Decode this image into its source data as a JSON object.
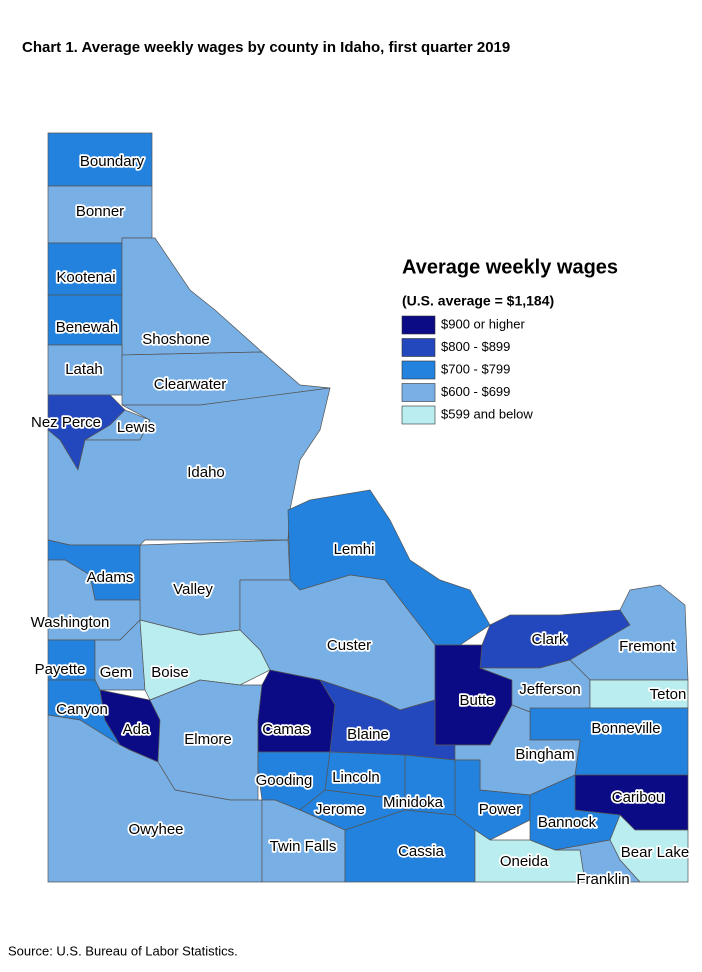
{
  "title": "Chart 1. Average weekly wages by county in Idaho, first quarter 2019",
  "legend": {
    "title": "Average weekly wages",
    "subtitle": "(U.S. average = $1,184)",
    "items": [
      {
        "label": "$900 or higher",
        "color": "#0b0b85"
      },
      {
        "label": "$800 - $899",
        "color": "#2347bd"
      },
      {
        "label": "$700 - $799",
        "color": "#2282de"
      },
      {
        "label": "$600 - $699",
        "color": "#78b0e6"
      },
      {
        "label": "$599 and below",
        "color": "#b9edf0"
      }
    ]
  },
  "counties": [
    {
      "name": "Boundary",
      "color": "#2282de"
    },
    {
      "name": "Bonner",
      "color": "#78b0e6"
    },
    {
      "name": "Kootenai",
      "color": "#2282de"
    },
    {
      "name": "Benewah",
      "color": "#2282de"
    },
    {
      "name": "Shoshone",
      "color": "#78b0e6"
    },
    {
      "name": "Latah",
      "color": "#78b0e6"
    },
    {
      "name": "Clearwater",
      "color": "#78b0e6"
    },
    {
      "name": "Nez Perce",
      "color": "#2347bd"
    },
    {
      "name": "Lewis",
      "color": "#78b0e6"
    },
    {
      "name": "Idaho",
      "color": "#78b0e6"
    },
    {
      "name": "Lemhi",
      "color": "#2282de"
    },
    {
      "name": "Adams",
      "color": "#2282de"
    },
    {
      "name": "Valley",
      "color": "#78b0e6"
    },
    {
      "name": "Washington",
      "color": "#78b0e6"
    },
    {
      "name": "Custer",
      "color": "#78b0e6"
    },
    {
      "name": "Clark",
      "color": "#2347bd"
    },
    {
      "name": "Fremont",
      "color": "#78b0e6"
    },
    {
      "name": "Payette",
      "color": "#2282de"
    },
    {
      "name": "Gem",
      "color": "#78b0e6"
    },
    {
      "name": "Boise",
      "color": "#b9edf0"
    },
    {
      "name": "Butte",
      "color": "#0b0b85"
    },
    {
      "name": "Jefferson",
      "color": "#78b0e6"
    },
    {
      "name": "Teton",
      "color": "#b9edf0"
    },
    {
      "name": "Canyon",
      "color": "#2282de"
    },
    {
      "name": "Ada",
      "color": "#0b0b85"
    },
    {
      "name": "Elmore",
      "color": "#78b0e6"
    },
    {
      "name": "Camas",
      "color": "#0b0b85"
    },
    {
      "name": "Blaine",
      "color": "#2347bd"
    },
    {
      "name": "Bonneville",
      "color": "#2282de"
    },
    {
      "name": "Bingham",
      "color": "#78b0e6"
    },
    {
      "name": "Gooding",
      "color": "#2282de"
    },
    {
      "name": "Lincoln",
      "color": "#2282de"
    },
    {
      "name": "Minidoka",
      "color": "#2282de"
    },
    {
      "name": "Jerome",
      "color": "#2282de"
    },
    {
      "name": "Power",
      "color": "#2282de"
    },
    {
      "name": "Caribou",
      "color": "#0b0b85"
    },
    {
      "name": "Bannock",
      "color": "#2282de"
    },
    {
      "name": "Owyhee",
      "color": "#78b0e6"
    },
    {
      "name": "Twin Falls",
      "color": "#78b0e6"
    },
    {
      "name": "Cassia",
      "color": "#2282de"
    },
    {
      "name": "Bear Lake",
      "color": "#b9edf0"
    },
    {
      "name": "Oneida",
      "color": "#b9edf0"
    },
    {
      "name": "Franklin",
      "color": "#78b0e6"
    }
  ],
  "source": "Source: U.S. Bureau of Labor Statistics."
}
